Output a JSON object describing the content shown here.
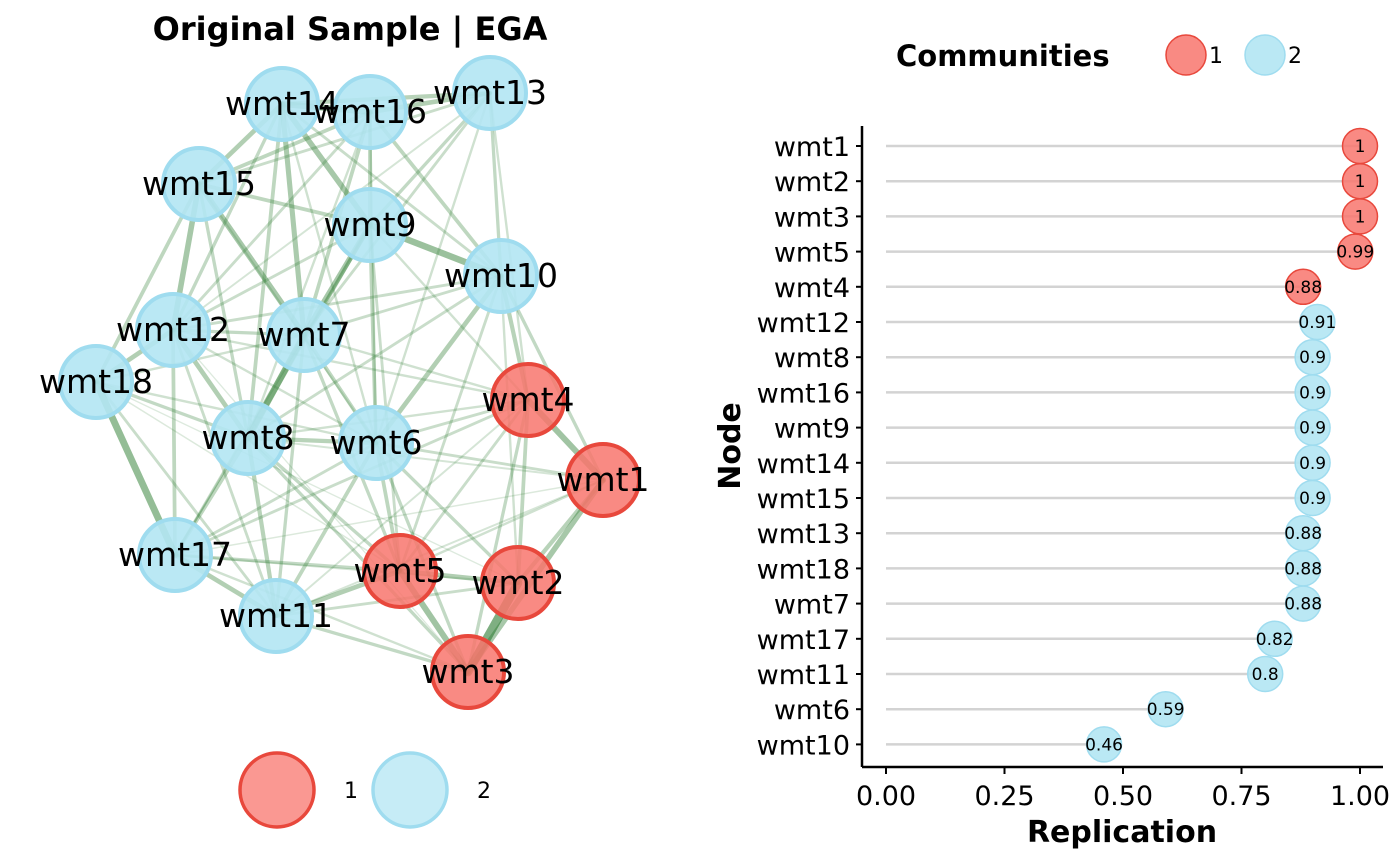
{
  "colors": {
    "community_1_fill": "#f8766d",
    "community_1_stroke": "#e8483c",
    "community_2_fill": "#b3e6f3",
    "community_2_stroke": "#9fdcef",
    "edge": "#2e7d32",
    "grid_line": "#d3d3d3",
    "axis": "#000000"
  },
  "chart_data": [
    {
      "type": "network",
      "title": "Original Sample | EGA",
      "legend": {
        "placement": "bottom",
        "entries": [
          "1",
          "2"
        ]
      },
      "nodes": [
        {
          "name": "wmt1",
          "community": 1
        },
        {
          "name": "wmt2",
          "community": 1
        },
        {
          "name": "wmt3",
          "community": 1
        },
        {
          "name": "wmt4",
          "community": 1
        },
        {
          "name": "wmt5",
          "community": 1
        },
        {
          "name": "wmt6",
          "community": 2
        },
        {
          "name": "wmt7",
          "community": 2
        },
        {
          "name": "wmt8",
          "community": 2
        },
        {
          "name": "wmt9",
          "community": 2
        },
        {
          "name": "wmt10",
          "community": 2
        },
        {
          "name": "wmt11",
          "community": 2
        },
        {
          "name": "wmt12",
          "community": 2
        },
        {
          "name": "wmt13",
          "community": 2
        },
        {
          "name": "wmt14",
          "community": 2
        },
        {
          "name": "wmt15",
          "community": 2
        },
        {
          "name": "wmt16",
          "community": 2
        },
        {
          "name": "wmt17",
          "community": 2
        },
        {
          "name": "wmt18",
          "community": 2
        }
      ],
      "edges": [
        {
          "source": "wmt2",
          "target": "wmt3",
          "weight": 0.9
        },
        {
          "source": "wmt1",
          "target": "wmt3",
          "weight": 0.55
        },
        {
          "source": "wmt1",
          "target": "wmt2",
          "weight": 0.4
        },
        {
          "source": "wmt4",
          "target": "wmt1",
          "weight": 0.6
        },
        {
          "source": "wmt4",
          "target": "wmt2",
          "weight": 0.35
        },
        {
          "source": "wmt5",
          "target": "wmt3",
          "weight": 0.6
        },
        {
          "source": "wmt5",
          "target": "wmt2",
          "weight": 0.45
        },
        {
          "source": "wmt5",
          "target": "wmt4",
          "weight": 0.25
        },
        {
          "source": "wmt5",
          "target": "wmt1",
          "weight": 0.2
        },
        {
          "source": "wmt4",
          "target": "wmt3",
          "weight": 0.3
        },
        {
          "source": "wmt14",
          "target": "wmt16",
          "weight": 0.6
        },
        {
          "source": "wmt16",
          "target": "wmt13",
          "weight": 0.45
        },
        {
          "source": "wmt14",
          "target": "wmt13",
          "weight": 0.4
        },
        {
          "source": "wmt14",
          "target": "wmt15",
          "weight": 0.45
        },
        {
          "source": "wmt14",
          "target": "wmt9",
          "weight": 0.55
        },
        {
          "source": "wmt16",
          "target": "wmt9",
          "weight": 0.35
        },
        {
          "source": "wmt9",
          "target": "wmt10",
          "weight": 0.65
        },
        {
          "source": "wmt16",
          "target": "wmt10",
          "weight": 0.35
        },
        {
          "source": "wmt13",
          "target": "wmt10",
          "weight": 0.3
        },
        {
          "source": "wmt15",
          "target": "wmt12",
          "weight": 0.55
        },
        {
          "source": "wmt15",
          "target": "wmt7",
          "weight": 0.55
        },
        {
          "source": "wmt15",
          "target": "wmt18",
          "weight": 0.35
        },
        {
          "source": "wmt12",
          "target": "wmt18",
          "weight": 0.45
        },
        {
          "source": "wmt12",
          "target": "wmt8",
          "weight": 0.45
        },
        {
          "source": "wmt12",
          "target": "wmt7",
          "weight": 0.3
        },
        {
          "source": "wmt12",
          "target": "wmt17",
          "weight": 0.35
        },
        {
          "source": "wmt18",
          "target": "wmt17",
          "weight": 0.7
        },
        {
          "source": "wmt18",
          "target": "wmt8",
          "weight": 0.3
        },
        {
          "source": "wmt7",
          "target": "wmt8",
          "weight": 0.65
        },
        {
          "source": "wmt7",
          "target": "wmt9",
          "weight": 0.55
        },
        {
          "source": "wmt7",
          "target": "wmt6",
          "weight": 0.35
        },
        {
          "source": "wmt7",
          "target": "wmt14",
          "weight": 0.5
        },
        {
          "source": "wmt7",
          "target": "wmt16",
          "weight": 0.35
        },
        {
          "source": "wmt8",
          "target": "wmt6",
          "weight": 0.4
        },
        {
          "source": "wmt8",
          "target": "wmt17",
          "weight": 0.35
        },
        {
          "source": "wmt8",
          "target": "wmt11",
          "weight": 0.4
        },
        {
          "source": "wmt6",
          "target": "wmt10",
          "weight": 0.45
        },
        {
          "source": "wmt6",
          "target": "wmt9",
          "weight": 0.35
        },
        {
          "source": "wmt6",
          "target": "wmt11",
          "weight": 0.35
        },
        {
          "source": "wmt17",
          "target": "wmt11",
          "weight": 0.45
        },
        {
          "source": "wmt15",
          "target": "wmt9",
          "weight": 0.35
        },
        {
          "source": "wmt15",
          "target": "wmt16",
          "weight": 0.35
        },
        {
          "source": "wmt13",
          "target": "wmt9",
          "weight": 0.3
        },
        {
          "source": "wmt10",
          "target": "wmt4",
          "weight": 0.4
        },
        {
          "source": "wmt10",
          "target": "wmt12",
          "weight": 0.25
        },
        {
          "source": "wmt6",
          "target": "wmt4",
          "weight": 0.25
        },
        {
          "source": "wmt6",
          "target": "wmt5",
          "weight": 0.35
        },
        {
          "source": "wmt6",
          "target": "wmt2",
          "weight": 0.3
        },
        {
          "source": "wmt6",
          "target": "wmt3",
          "weight": 0.3
        },
        {
          "source": "wmt6",
          "target": "wmt1",
          "weight": 0.25
        },
        {
          "source": "wmt8",
          "target": "wmt5",
          "weight": 0.3
        },
        {
          "source": "wmt8",
          "target": "wmt3",
          "weight": 0.3
        },
        {
          "source": "wmt8",
          "target": "wmt4",
          "weight": 0.2
        },
        {
          "source": "wmt7",
          "target": "wmt5",
          "weight": 0.3
        },
        {
          "source": "wmt7",
          "target": "wmt4",
          "weight": 0.2
        },
        {
          "source": "wmt9",
          "target": "wmt5",
          "weight": 0.25
        },
        {
          "source": "wmt9",
          "target": "wmt4",
          "weight": 0.2
        },
        {
          "source": "wmt11",
          "target": "wmt5",
          "weight": 0.45
        },
        {
          "source": "wmt11",
          "target": "wmt3",
          "weight": 0.3
        },
        {
          "source": "wmt11",
          "target": "wmt2",
          "weight": 0.25
        },
        {
          "source": "wmt17",
          "target": "wmt5",
          "weight": 0.3
        },
        {
          "source": "wmt17",
          "target": "wmt4",
          "weight": 0.25
        },
        {
          "source": "wmt17",
          "target": "wmt3",
          "weight": 0.2
        },
        {
          "source": "wmt12",
          "target": "wmt4",
          "weight": 0.2
        },
        {
          "source": "wmt10",
          "target": "wmt1",
          "weight": 0.3
        },
        {
          "source": "wmt10",
          "target": "wmt5",
          "weight": 0.25
        },
        {
          "source": "wmt13",
          "target": "wmt4",
          "weight": 0.2
        },
        {
          "source": "wmt13",
          "target": "wmt6",
          "weight": 0.2
        },
        {
          "source": "wmt16",
          "target": "wmt6",
          "weight": 0.2
        },
        {
          "source": "wmt14",
          "target": "wmt8",
          "weight": 0.35
        },
        {
          "source": "wmt14",
          "target": "wmt12",
          "weight": 0.3
        },
        {
          "source": "wmt15",
          "target": "wmt8",
          "weight": 0.3
        },
        {
          "source": "wmt18",
          "target": "wmt11",
          "weight": 0.25
        },
        {
          "source": "wmt18",
          "target": "wmt6",
          "weight": 0.2
        },
        {
          "source": "wmt18",
          "target": "wmt7",
          "weight": 0.2
        },
        {
          "source": "wmt12",
          "target": "wmt11",
          "weight": 0.25
        },
        {
          "source": "wmt9",
          "target": "wmt8",
          "weight": 0.35
        },
        {
          "source": "wmt9",
          "target": "wmt12",
          "weight": 0.25
        },
        {
          "source": "wmt10",
          "target": "wmt7",
          "weight": 0.25
        },
        {
          "source": "wmt10",
          "target": "wmt8",
          "weight": 0.25
        },
        {
          "source": "wmt7",
          "target": "wmt11",
          "weight": 0.3
        },
        {
          "source": "wmt7",
          "target": "wmt17",
          "weight": 0.25
        },
        {
          "source": "wmt10",
          "target": "wmt14",
          "weight": 0.25
        },
        {
          "source": "wmt13",
          "target": "wmt15",
          "weight": 0.25
        },
        {
          "source": "wmt13",
          "target": "wmt7",
          "weight": 0.25
        },
        {
          "source": "wmt16",
          "target": "wmt12",
          "weight": 0.25
        },
        {
          "source": "wmt6",
          "target": "wmt12",
          "weight": 0.2
        },
        {
          "source": "wmt6",
          "target": "wmt17",
          "weight": 0.25
        },
        {
          "source": "wmt4",
          "target": "wmt11",
          "weight": 0.15
        },
        {
          "source": "wmt1",
          "target": "wmt8",
          "weight": 0.15
        },
        {
          "source": "wmt1",
          "target": "wmt11",
          "weight": 0.15
        },
        {
          "source": "wmt2",
          "target": "wmt17",
          "weight": 0.15
        },
        {
          "source": "wmt18",
          "target": "wmt5",
          "weight": 0.1
        },
        {
          "source": "wmt18",
          "target": "wmt2",
          "weight": 0.08
        },
        {
          "source": "wmt15",
          "target": "wmt6",
          "weight": 0.15
        },
        {
          "source": "wmt14",
          "target": "wmt6",
          "weight": 0.2
        },
        {
          "source": "wmt16",
          "target": "wmt8",
          "weight": 0.2
        },
        {
          "source": "wmt9",
          "target": "wmt17",
          "weight": 0.15
        },
        {
          "source": "wmt13",
          "target": "wmt12",
          "weight": 0.15
        },
        {
          "source": "wmt10",
          "target": "wmt2",
          "weight": 0.2
        },
        {
          "source": "wmt3",
          "target": "wmt12",
          "weight": 0.08
        },
        {
          "source": "wmt1",
          "target": "wmt17",
          "weight": 0.1
        }
      ]
    },
    {
      "type": "dot",
      "xlabel": "Replication",
      "ylabel": "Node",
      "xlim": [
        0,
        1
      ],
      "xticks": [
        "0.00",
        "0.25",
        "0.50",
        "0.75",
        "1.00"
      ],
      "grid": "horizontal reference lines per node",
      "legend": {
        "title": "Communities",
        "placement": "top",
        "entries": [
          "1",
          "2"
        ]
      },
      "points": [
        {
          "node": "wmt1",
          "value": 1,
          "label": "1",
          "community": 1
        },
        {
          "node": "wmt2",
          "value": 1,
          "label": "1",
          "community": 1
        },
        {
          "node": "wmt3",
          "value": 1,
          "label": "1",
          "community": 1
        },
        {
          "node": "wmt5",
          "value": 0.99,
          "label": "0.99",
          "community": 1
        },
        {
          "node": "wmt4",
          "value": 0.88,
          "label": "0.88",
          "community": 1
        },
        {
          "node": "wmt12",
          "value": 0.91,
          "label": "0.91",
          "community": 2
        },
        {
          "node": "wmt8",
          "value": 0.9,
          "label": "0.9",
          "community": 2
        },
        {
          "node": "wmt16",
          "value": 0.9,
          "label": "0.9",
          "community": 2
        },
        {
          "node": "wmt9",
          "value": 0.9,
          "label": "0.9",
          "community": 2
        },
        {
          "node": "wmt14",
          "value": 0.9,
          "label": "0.9",
          "community": 2
        },
        {
          "node": "wmt15",
          "value": 0.9,
          "label": "0.9",
          "community": 2
        },
        {
          "node": "wmt13",
          "value": 0.88,
          "label": "0.88",
          "community": 2
        },
        {
          "node": "wmt18",
          "value": 0.88,
          "label": "0.88",
          "community": 2
        },
        {
          "node": "wmt7",
          "value": 0.88,
          "label": "0.88",
          "community": 2
        },
        {
          "node": "wmt17",
          "value": 0.82,
          "label": "0.82",
          "community": 2
        },
        {
          "node": "wmt11",
          "value": 0.8,
          "label": "0.8",
          "community": 2
        },
        {
          "node": "wmt6",
          "value": 0.59,
          "label": "0.59",
          "community": 2
        },
        {
          "node": "wmt10",
          "value": 0.46,
          "label": "0.46",
          "community": 2
        }
      ]
    }
  ]
}
